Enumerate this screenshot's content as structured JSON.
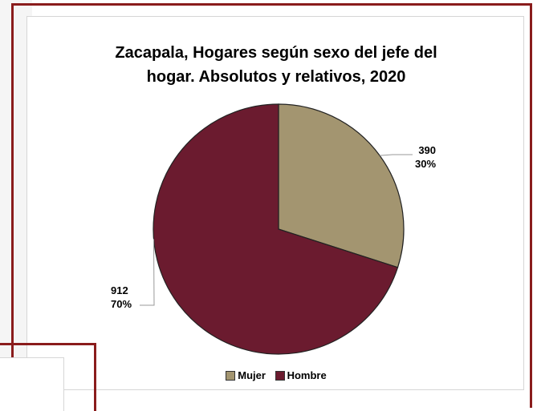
{
  "chart_data": {
    "type": "pie",
    "title_lines": [
      "Zacapala, Hogares según sexo del jefe del",
      "hogar. Absolutos y relativos, 2020"
    ],
    "categories": [
      "Mujer",
      "Hombre"
    ],
    "values": [
      390,
      912
    ],
    "percent_labels": [
      "30%",
      "70%"
    ],
    "value_labels": [
      "390",
      "912"
    ],
    "colors": [
      "#a39570",
      "#6b1b2f"
    ],
    "legend_position": "bottom"
  }
}
